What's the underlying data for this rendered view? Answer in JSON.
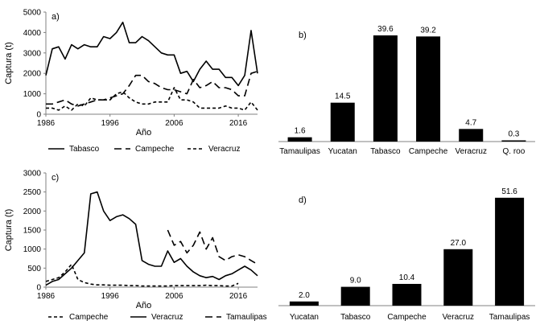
{
  "chart_data": [
    {
      "panel": "a)",
      "type": "line",
      "ylabel": "Captura (t)",
      "xlabel": "Año",
      "ylim": [
        0,
        5000
      ],
      "yticks": [
        "0",
        "1000",
        "2000",
        "3000",
        "4000",
        "5000"
      ],
      "xlim": [
        1986,
        2019
      ],
      "xticks": [
        "1986",
        "1996",
        "2006",
        "2016"
      ],
      "series": [
        {
          "name": "Tabasco",
          "dash": "solid",
          "x": [
            1986,
            1987,
            1988,
            1989,
            1990,
            1991,
            1992,
            1993,
            1994,
            1995,
            1996,
            1997,
            1998,
            1999,
            2000,
            2001,
            2002,
            2003,
            2004,
            2005,
            2006,
            2007,
            2008,
            2009,
            2010,
            2011,
            2012,
            2013,
            2014,
            2015,
            2016,
            2017,
            2018,
            2019
          ],
          "y": [
            1900,
            3200,
            3300,
            2700,
            3400,
            3200,
            3400,
            3300,
            3300,
            3800,
            3700,
            4000,
            4500,
            3500,
            3500,
            3800,
            3600,
            3300,
            3000,
            2900,
            2900,
            2000,
            2100,
            1600,
            2200,
            2600,
            2200,
            2200,
            1800,
            1800,
            1400,
            1900,
            4100,
            2000
          ]
        },
        {
          "name": "Campeche",
          "dash": "long-dash",
          "x": [
            1986,
            1987,
            1988,
            1989,
            1990,
            1991,
            1992,
            1993,
            1994,
            1995,
            1996,
            1997,
            1998,
            1999,
            2000,
            2001,
            2002,
            2003,
            2004,
            2005,
            2006,
            2007,
            2008,
            2009,
            2010,
            2011,
            2012,
            2013,
            2014,
            2015,
            2016,
            2017,
            2018,
            2019
          ],
          "y": [
            500,
            500,
            600,
            700,
            500,
            400,
            500,
            600,
            700,
            700,
            800,
            900,
            1000,
            1400,
            1900,
            1900,
            1600,
            1500,
            1300,
            1200,
            1200,
            1100,
            1000,
            1700,
            1300,
            1400,
            1600,
            1300,
            1300,
            1200,
            900,
            900,
            2000,
            2100
          ]
        },
        {
          "name": "Veracruz",
          "dash": "short-dash",
          "x": [
            1986,
            1987,
            1988,
            1989,
            1990,
            1991,
            1992,
            1993,
            1994,
            1995,
            1996,
            1997,
            1998,
            1999,
            2000,
            2001,
            2002,
            2003,
            2004,
            2005,
            2006,
            2007,
            2008,
            2009,
            2010,
            2011,
            2012,
            2013,
            2014,
            2015,
            2016,
            2017,
            2018,
            2019
          ],
          "y": [
            300,
            300,
            200,
            400,
            200,
            500,
            400,
            800,
            700,
            700,
            700,
            1000,
            1100,
            800,
            600,
            500,
            500,
            600,
            600,
            600,
            1300,
            700,
            700,
            600,
            300,
            300,
            300,
            300,
            400,
            300,
            300,
            200,
            600,
            200
          ]
        }
      ]
    },
    {
      "panel": "b)",
      "type": "bar",
      "categories": [
        "Tamaulipas",
        "Yucatan",
        "Tabasco",
        "Campeche",
        "Veracruz",
        "Q. roo"
      ],
      "values": [
        1.6,
        14.5,
        39.6,
        39.2,
        4.7,
        0.3
      ],
      "value_labels": [
        "1.6",
        "14.5",
        "39.6",
        "39.2",
        "4.7",
        "0.3"
      ],
      "ylim": [
        0,
        45
      ]
    },
    {
      "panel": "c)",
      "type": "line",
      "ylabel": "Captura (t)",
      "xlabel": "Año",
      "ylim": [
        0,
        3000
      ],
      "yticks": [
        "0",
        "500",
        "1000",
        "1500",
        "2000",
        "2500",
        "3000"
      ],
      "xlim": [
        1986,
        2019
      ],
      "xticks": [
        "1986",
        "1996",
        "2006",
        "2016"
      ],
      "series": [
        {
          "name": "Campeche",
          "dash": "short-dash",
          "x": [
            1986,
            1987,
            1988,
            1989,
            1990,
            1991,
            1992,
            1993,
            1994,
            1995,
            1996,
            1997,
            1998,
            1999,
            2000,
            2001,
            2002,
            2003,
            2004,
            2005,
            2006,
            2007,
            2008,
            2009,
            2010,
            2011,
            2012,
            2013,
            2014,
            2015,
            2016
          ],
          "y": [
            150,
            200,
            250,
            400,
            600,
            200,
            120,
            80,
            60,
            60,
            50,
            50,
            50,
            40,
            40,
            30,
            30,
            30,
            30,
            30,
            40,
            40,
            40,
            40,
            40,
            50,
            40,
            40,
            30,
            30,
            100
          ]
        },
        {
          "name": "Veracruz",
          "dash": "solid",
          "x": [
            1986,
            1987,
            1988,
            1989,
            1990,
            1991,
            1992,
            1993,
            1994,
            1995,
            1996,
            1997,
            1998,
            1999,
            2000,
            2001,
            2002,
            2003,
            2004,
            2005,
            2006,
            2007,
            2008,
            2009,
            2010,
            2011,
            2012,
            2013,
            2014,
            2015,
            2016,
            2017,
            2018,
            2019
          ],
          "y": [
            50,
            150,
            200,
            350,
            500,
            700,
            900,
            2450,
            2500,
            2000,
            1750,
            1850,
            1900,
            1800,
            1650,
            700,
            600,
            550,
            550,
            950,
            650,
            750,
            550,
            400,
            300,
            250,
            280,
            200,
            300,
            350,
            450,
            550,
            450,
            300
          ]
        },
        {
          "name": "Tamaulipas",
          "dash": "long-dash",
          "x": [
            2005,
            2006,
            2007,
            2008,
            2009,
            2010,
            2011,
            2012,
            2013,
            2014,
            2015,
            2016,
            2017,
            2018,
            2019
          ],
          "y": [
            1500,
            1100,
            1200,
            900,
            1100,
            1450,
            1000,
            1300,
            800,
            700,
            800,
            850,
            800,
            700,
            600
          ]
        }
      ]
    },
    {
      "panel": "d)",
      "type": "bar",
      "categories": [
        "Yucatan",
        "Tabasco",
        "Campeche",
        "Veracruz",
        "Tamaulipas"
      ],
      "values": [
        2.0,
        9.0,
        10.4,
        27.0,
        51.6
      ],
      "value_labels": [
        "2.0",
        "9.0",
        "10.4",
        "27.0",
        "51.6"
      ],
      "ylim": [
        0,
        60
      ]
    }
  ]
}
